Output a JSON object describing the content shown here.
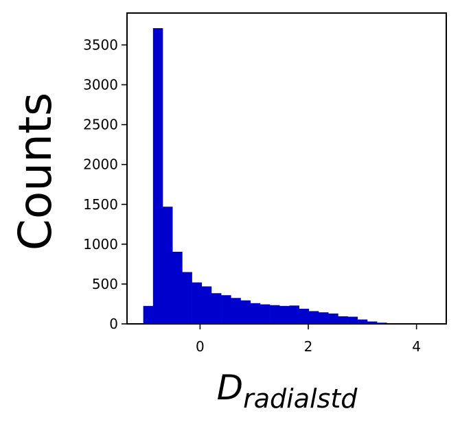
{
  "chart_data": {
    "type": "bar",
    "title": "",
    "ylabel": "Counts",
    "xlabel_main": "D",
    "xlabel_sub": "radialstd",
    "xlim": [
      -1.35,
      4.55
    ],
    "ylim": [
      0,
      3900
    ],
    "xticks": [
      0,
      2,
      4
    ],
    "yticks": [
      0,
      500,
      1000,
      1500,
      2000,
      2500,
      3000,
      3500
    ],
    "bar_color": "#0000cc",
    "bin_edges": [
      -1.05,
      -0.87,
      -0.69,
      -0.51,
      -0.33,
      -0.15,
      0.03,
      0.21,
      0.39,
      0.57,
      0.75,
      0.93,
      1.11,
      1.29,
      1.47,
      1.65,
      1.83,
      2.01,
      2.19,
      2.37,
      2.55,
      2.73,
      2.91,
      3.09,
      3.27,
      3.45,
      3.63,
      3.81,
      3.99,
      4.17,
      4.35
    ],
    "values": [
      225,
      3710,
      1470,
      905,
      650,
      520,
      470,
      385,
      360,
      325,
      295,
      260,
      245,
      235,
      225,
      230,
      190,
      160,
      145,
      130,
      95,
      90,
      55,
      30,
      15,
      5,
      3,
      2,
      1,
      1
    ]
  }
}
